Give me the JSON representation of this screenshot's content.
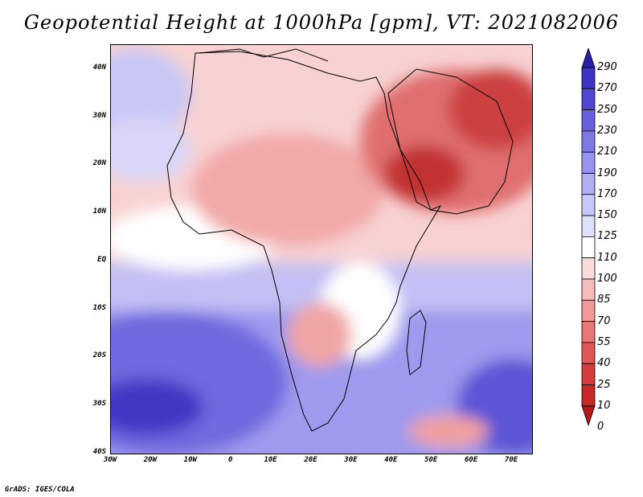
{
  "title": "Geopotential Height at 1000hPa [gpm], VT: 2021082006",
  "credit": "GrADS: IGES/COLA",
  "map": {
    "lat_range": [
      -40,
      45
    ],
    "lon_range": [
      -30,
      75
    ],
    "lat_labels": [
      {
        "lat": 40,
        "text": "40N"
      },
      {
        "lat": 30,
        "text": "30N"
      },
      {
        "lat": 20,
        "text": "20N"
      },
      {
        "lat": 10,
        "text": "10N"
      },
      {
        "lat": 0,
        "text": "EQ"
      },
      {
        "lat": -10,
        "text": "10S"
      },
      {
        "lat": -20,
        "text": "20S"
      },
      {
        "lat": -30,
        "text": "30S"
      },
      {
        "lat": -40,
        "text": "40S"
      }
    ],
    "lon_labels": [
      {
        "lon": -30,
        "text": "30W"
      },
      {
        "lon": -20,
        "text": "20W"
      },
      {
        "lon": -10,
        "text": "10W"
      },
      {
        "lon": 0,
        "text": "0"
      },
      {
        "lon": 10,
        "text": "10E"
      },
      {
        "lon": 20,
        "text": "20E"
      },
      {
        "lon": 30,
        "text": "30E"
      },
      {
        "lon": 40,
        "text": "40E"
      },
      {
        "lon": 50,
        "text": "50E"
      },
      {
        "lon": 60,
        "text": "60E"
      },
      {
        "lon": 70,
        "text": "70E"
      }
    ]
  },
  "colorbar": {
    "labels": [
      "290",
      "270",
      "250",
      "230",
      "210",
      "190",
      "170",
      "150",
      "125",
      "110",
      "100",
      "85",
      "70",
      "55",
      "40",
      "25",
      "10",
      "0"
    ],
    "colors": [
      "#2a1fa8",
      "#3b34c2",
      "#5048d0",
      "#6860dc",
      "#7f79e4",
      "#9893ec",
      "#b1aef2",
      "#c9c7f6",
      "#e1e0fa",
      "#ffffff",
      "#fbdcdc",
      "#f6bcbc",
      "#f09a9a",
      "#e87878",
      "#df5858",
      "#d53c3c",
      "#c82828",
      "#b41818"
    ]
  },
  "colors": {
    "height_lowest": "#b41818",
    "height_highest": "#2a1fa8",
    "coastline": "#000000"
  }
}
